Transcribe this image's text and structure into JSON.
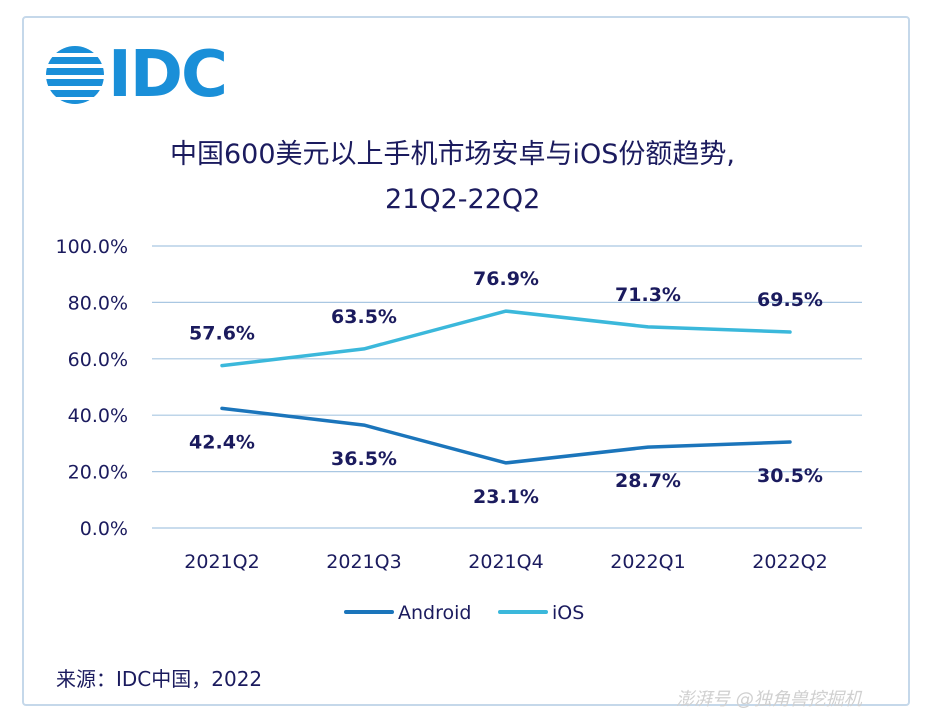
{
  "brand": {
    "logo_text": "IDC",
    "color": "#1a8fd8"
  },
  "title_line1": "中国600美元以上手机市场安卓与iOS份额趋势,",
  "title_line2": "21Q2-22Q2",
  "source": "来源：IDC中国，2022",
  "watermark": "澎湃号 @独角兽挖掘机",
  "chart_data": {
    "type": "line",
    "categories": [
      "2021Q2",
      "2021Q3",
      "2021Q4",
      "2022Q1",
      "2022Q2"
    ],
    "series": [
      {
        "name": "Android",
        "values": [
          42.4,
          36.5,
          23.1,
          28.7,
          30.5
        ],
        "labels": [
          "42.4%",
          "36.5%",
          "23.1%",
          "28.7%",
          "30.5%"
        ],
        "color": "#1b75bb"
      },
      {
        "name": "iOS",
        "values": [
          57.6,
          63.5,
          76.9,
          71.3,
          69.5
        ],
        "labels": [
          "57.6%",
          "63.5%",
          "76.9%",
          "71.3%",
          "69.5%"
        ],
        "color": "#3bb8db"
      }
    ],
    "y_ticks": [
      "0.0%",
      "20.0%",
      "40.0%",
      "60.0%",
      "80.0%",
      "100.0%"
    ],
    "ylim": [
      0,
      100
    ],
    "grid": true,
    "legend": "bottom"
  }
}
